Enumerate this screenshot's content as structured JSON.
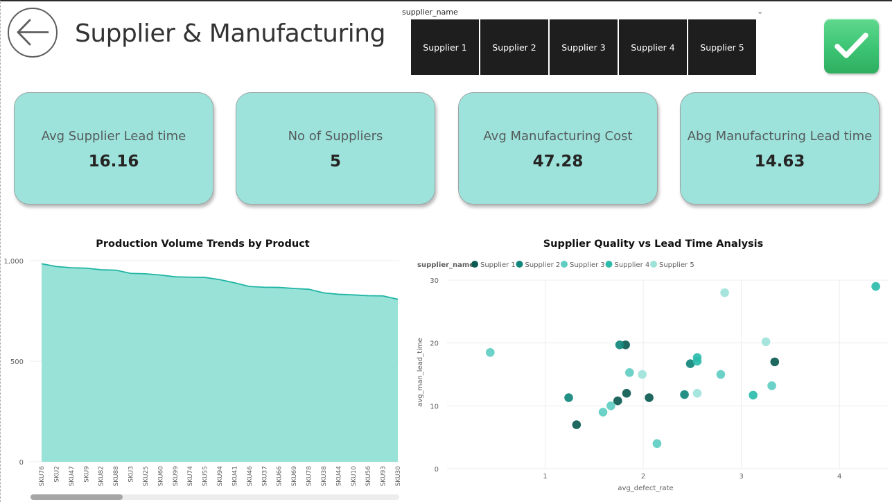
{
  "header": {
    "title": "Supplier & Manufacturing",
    "back_icon": "arrow-left-icon",
    "apply_icon": "checkmark-icon"
  },
  "slicer": {
    "field": "supplier_name",
    "options": [
      "Supplier 1",
      "Supplier 2",
      "Supplier 3",
      "Supplier 4",
      "Supplier 5"
    ]
  },
  "kpis": [
    {
      "label": "Avg Supplier Lead time",
      "value": "16.16"
    },
    {
      "label": "No of Suppliers",
      "value": "5"
    },
    {
      "label": "Avg Manufacturing Cost",
      "value": "47.28"
    },
    {
      "label": "Abg Manufacturing Lead time",
      "value": "14.63"
    }
  ],
  "colors": {
    "kpi_bg": "#9de3dc",
    "area_fill": "#99e2d8",
    "area_line": "#1fb5a4",
    "slicer_bg": "#1e1e1e",
    "apply_green": "#3cc473"
  },
  "chart_data": [
    {
      "type": "area",
      "title": "Production Volume Trends by Product",
      "categories": [
        "SKU76",
        "SKU2",
        "SKU47",
        "SKU9",
        "SKU82",
        "SKU88",
        "SKU3",
        "SKU25",
        "SKU60",
        "SKU99",
        "SKU74",
        "SKU55",
        "SKU94",
        "SKU41",
        "SKU46",
        "SKU37",
        "SKU66",
        "SKU69",
        "SKU78",
        "SKU38",
        "SKU44",
        "SKU10",
        "SKU56",
        "SKU93",
        "SKU30"
      ],
      "values": [
        985,
        971,
        965,
        963,
        955,
        953,
        937,
        935,
        929,
        920,
        918,
        917,
        906,
        890,
        872,
        868,
        867,
        862,
        858,
        840,
        833,
        830,
        826,
        825,
        808
      ],
      "yticks": [
        "1,000",
        "500",
        "0"
      ],
      "ylim": [
        0,
        1000
      ],
      "grid": true,
      "scrollbar": true
    },
    {
      "type": "scatter",
      "title": "Supplier Quality vs Lead Time Analysis",
      "xlabel": "avg_defect_rate",
      "ylabel": "avg_man_lead_time",
      "xlim": [
        0.0,
        4.5
      ],
      "ylim": [
        0,
        30
      ],
      "xticks": [
        1,
        2,
        3,
        4
      ],
      "yticks": [
        0,
        10,
        20,
        30
      ],
      "legend_title": "supplier_name",
      "legend_position": "top-left",
      "grid": true,
      "series": [
        {
          "name": "Supplier 1",
          "color": "#0b5b52",
          "points": [
            [
              1.32,
              7
            ],
            [
              1.74,
              10.8
            ],
            [
              1.82,
              19.7
            ],
            [
              1.83,
              12
            ],
            [
              2.06,
              11.3
            ],
            [
              3.34,
              17
            ]
          ]
        },
        {
          "name": "Supplier 2",
          "color": "#11877b",
          "points": [
            [
              1.24,
              11.3
            ],
            [
              1.76,
              19.7
            ],
            [
              2.42,
              11.8
            ],
            [
              2.48,
              16.7
            ]
          ]
        },
        {
          "name": "Supplier 3",
          "color": "#5fcdc1",
          "points": [
            [
              0.44,
              18.5
            ],
            [
              1.59,
              9
            ],
            [
              1.67,
              10
            ],
            [
              1.86,
              15.3
            ],
            [
              2.14,
              4
            ],
            [
              2.79,
              15
            ],
            [
              3.31,
              13.2
            ]
          ]
        },
        {
          "name": "Supplier 4",
          "color": "#2dbcab",
          "points": [
            [
              2.55,
              17.1
            ],
            [
              2.55,
              17.7
            ],
            [
              3.12,
              11.7
            ],
            [
              4.37,
              29
            ]
          ]
        },
        {
          "name": "Supplier 5",
          "color": "#9ee3da",
          "points": [
            [
              1.99,
              15
            ],
            [
              2.55,
              12
            ],
            [
              2.83,
              28
            ],
            [
              3.25,
              20.2
            ]
          ]
        }
      ]
    }
  ]
}
